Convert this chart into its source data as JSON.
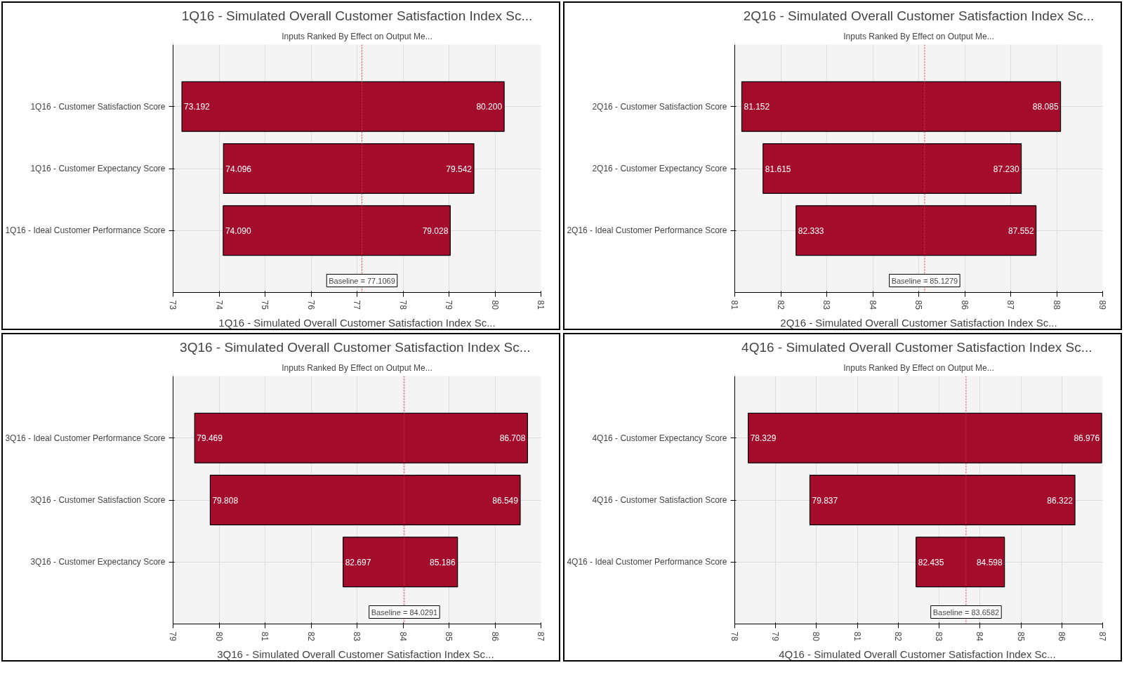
{
  "chart_data": [
    {
      "type": "bar",
      "orientation": "horizontal",
      "title": "1Q16 - Simulated Overall Customer Satisfaction Index Sc...",
      "subtitle": "Inputs Ranked By Effect on Output Me...",
      "xlabel": "1Q16 - Simulated Overall Customer Satisfaction Index Sc...",
      "categories": [
        "1Q16 - Customer Satisfaction Score",
        "1Q16 - Customer Expectancy Score",
        "1Q16 - Ideal Customer Performance Score"
      ],
      "base": [
        73.192,
        74.096,
        74.09
      ],
      "values": [
        7.008,
        5.446,
        4.938
      ],
      "color": "#a30d2b",
      "xlim": [
        73,
        81
      ],
      "xticks": [
        73,
        74,
        75,
        76,
        77,
        78,
        79,
        80,
        81
      ],
      "grid": true,
      "ref_lines": [
        {
          "axis": "x",
          "value": 77.1069,
          "label": "Baseline = 77.1069",
          "color": "#e0304a",
          "line_style": "dotted"
        }
      ],
      "annotations": [
        {
          "text": "73.192",
          "x": 73.192,
          "y": "1Q16 - Customer Satisfaction Score"
        },
        {
          "text": "80.200",
          "x": 80.2,
          "y": "1Q16 - Customer Satisfaction Score"
        },
        {
          "text": "74.096",
          "x": 74.096,
          "y": "1Q16 - Customer Expectancy Score"
        },
        {
          "text": "79.542",
          "x": 79.542,
          "y": "1Q16 - Customer Expectancy Score"
        },
        {
          "text": "74.090",
          "x": 74.09,
          "y": "1Q16 - Ideal Customer Performance Score"
        },
        {
          "text": "79.028",
          "x": 79.028,
          "y": "1Q16 - Ideal Customer Performance Score"
        }
      ]
    },
    {
      "type": "bar",
      "orientation": "horizontal",
      "title": "2Q16 - Simulated Overall Customer Satisfaction Index Sc...",
      "subtitle": "Inputs Ranked By Effect on Output Me...",
      "xlabel": "2Q16 - Simulated Overall Customer Satisfaction Index Sc...",
      "categories": [
        "2Q16 - Customer Satisfaction Score",
        "2Q16 - Customer Expectancy Score",
        "2Q16 - Ideal Customer Performance Score"
      ],
      "base": [
        81.152,
        81.615,
        82.333
      ],
      "values": [
        6.933,
        5.615,
        5.219
      ],
      "color": "#a30d2b",
      "xlim": [
        81,
        89
      ],
      "xticks": [
        81,
        82,
        83,
        84,
        85,
        86,
        87,
        88,
        89
      ],
      "grid": true,
      "ref_lines": [
        {
          "axis": "x",
          "value": 85.1279,
          "label": "Baseline = 85.1279",
          "color": "#e0304a",
          "line_style": "dotted"
        }
      ],
      "annotations": [
        {
          "text": "81.152",
          "x": 81.152,
          "y": "2Q16 - Customer Satisfaction Score"
        },
        {
          "text": "88.085",
          "x": 88.085,
          "y": "2Q16 - Customer Satisfaction Score"
        },
        {
          "text": "81.615",
          "x": 81.615,
          "y": "2Q16 - Customer Expectancy Score"
        },
        {
          "text": "87.230",
          "x": 87.23,
          "y": "2Q16 - Customer Expectancy Score"
        },
        {
          "text": "82.333",
          "x": 82.333,
          "y": "2Q16 - Ideal Customer Performance Score"
        },
        {
          "text": "87.552",
          "x": 87.552,
          "y": "2Q16 - Ideal Customer Performance Score"
        }
      ]
    },
    {
      "type": "bar",
      "orientation": "horizontal",
      "title": "3Q16 - Simulated Overall  Customer Satisfaction Index Sc...",
      "subtitle": "Inputs Ranked By Effect on Output Me...",
      "xlabel": "3Q16 - Simulated Overall  Customer Satisfaction Index Sc...",
      "categories": [
        "3Q16 - Ideal Customer Performance Score",
        "3Q16 - Customer Satisfaction Score",
        "3Q16 - Customer Expectancy Score"
      ],
      "base": [
        79.469,
        79.808,
        82.697
      ],
      "values": [
        7.239,
        6.741,
        2.489
      ],
      "color": "#a30d2b",
      "xlim": [
        79,
        87
      ],
      "xticks": [
        79,
        80,
        81,
        82,
        83,
        84,
        85,
        86,
        87
      ],
      "grid": true,
      "ref_lines": [
        {
          "axis": "x",
          "value": 84.0291,
          "label": "Baseline = 84.0291",
          "color": "#e0304a",
          "line_style": "dotted"
        }
      ],
      "annotations": [
        {
          "text": "79.469",
          "x": 79.469,
          "y": "3Q16 - Ideal Customer Performance Score"
        },
        {
          "text": "86.708",
          "x": 86.708,
          "y": "3Q16 - Ideal Customer Performance Score"
        },
        {
          "text": "79.808",
          "x": 79.808,
          "y": "3Q16 - Customer Satisfaction Score"
        },
        {
          "text": "86.549",
          "x": 86.549,
          "y": "3Q16 - Customer Satisfaction Score"
        },
        {
          "text": "82.697",
          "x": 82.697,
          "y": "3Q16 - Customer Expectancy Score"
        },
        {
          "text": "85.186",
          "x": 85.186,
          "y": "3Q16 - Customer Expectancy Score"
        }
      ]
    },
    {
      "type": "bar",
      "orientation": "horizontal",
      "title": "4Q16 - Simulated Overall  Customer Satisfaction Index Sc...",
      "subtitle": "Inputs Ranked By Effect on Output Me...",
      "xlabel": "4Q16 - Simulated Overall  Customer Satisfaction Index Sc...",
      "categories": [
        "4Q16 - Customer Expectancy Score",
        "4Q16 - Customer Satisfaction Score",
        "4Q16 - Ideal Customer Performance Score"
      ],
      "base": [
        78.329,
        79.837,
        82.435
      ],
      "values": [
        8.647,
        6.485,
        2.163
      ],
      "color": "#a30d2b",
      "xlim": [
        78,
        87
      ],
      "xticks": [
        78,
        79,
        80,
        81,
        82,
        83,
        84,
        85,
        86,
        87
      ],
      "grid": true,
      "ref_lines": [
        {
          "axis": "x",
          "value": 83.6582,
          "label": "Baseline = 83.6582",
          "color": "#e0304a",
          "line_style": "dotted"
        }
      ],
      "annotations": [
        {
          "text": "78.329",
          "x": 78.329,
          "y": "4Q16 - Customer Expectancy Score"
        },
        {
          "text": "86.976",
          "x": 86.976,
          "y": "4Q16 - Customer Expectancy Score"
        },
        {
          "text": "79.837",
          "x": 79.837,
          "y": "4Q16 - Customer Satisfaction Score"
        },
        {
          "text": "86.322",
          "x": 86.322,
          "y": "4Q16 - Customer Satisfaction Score"
        },
        {
          "text": "82.435",
          "x": 82.435,
          "y": "4Q16 - Ideal Customer Performance Score"
        },
        {
          "text": "84.598",
          "x": 84.598,
          "y": "4Q16 - Ideal Customer Performance Score"
        }
      ]
    }
  ]
}
